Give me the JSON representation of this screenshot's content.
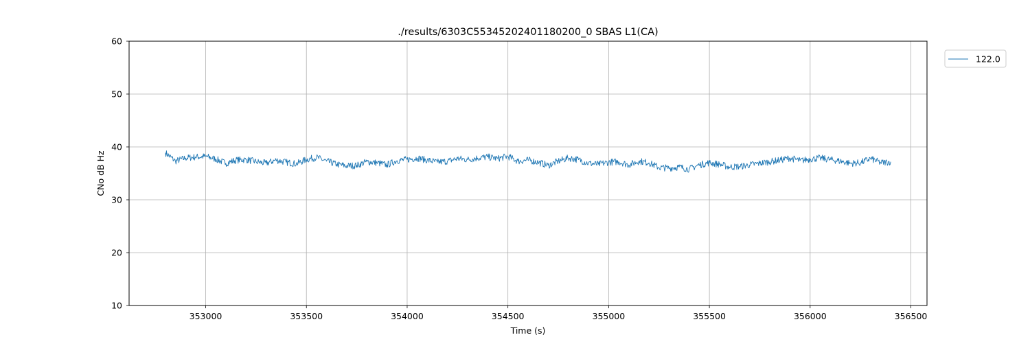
{
  "chart_data": {
    "type": "line",
    "title": "./results/6303C55345202401180200_0 SBAS L1(CA)",
    "xlabel": "Time (s)",
    "ylabel": "CNo dB Hz",
    "xlim": [
      352620,
      356580
    ],
    "ylim": [
      10,
      60
    ],
    "x_ticks": [
      353000,
      353500,
      354000,
      354500,
      355000,
      355500,
      356000,
      356500
    ],
    "y_ticks": [
      10,
      20,
      30,
      40,
      50,
      60
    ],
    "grid": true,
    "legend_position": "outside-right-top",
    "colors": {
      "series": "#1f77b4",
      "grid": "#b0b0b0"
    },
    "series": [
      {
        "name": "122.0",
        "x": [
          352800,
          352850,
          352900,
          352950,
          353000,
          353050,
          353100,
          353150,
          353200,
          353250,
          353300,
          353350,
          353400,
          353450,
          353500,
          353550,
          353600,
          353650,
          353700,
          353750,
          353800,
          353850,
          353900,
          353950,
          354000,
          354050,
          354100,
          354150,
          354200,
          354250,
          354300,
          354350,
          354400,
          354450,
          354500,
          354550,
          354600,
          354650,
          354700,
          354750,
          354800,
          354850,
          354900,
          354950,
          355000,
          355050,
          355100,
          355150,
          355200,
          355250,
          355300,
          355350,
          355400,
          355450,
          355500,
          355550,
          355600,
          355650,
          355700,
          355750,
          355800,
          355850,
          355900,
          355950,
          356000,
          356050,
          356100,
          356150,
          356200,
          356250,
          356300,
          356350,
          356400
        ],
        "y": [
          38.9,
          37.3,
          37.9,
          38.1,
          38.2,
          37.7,
          36.9,
          37.5,
          37.6,
          37.2,
          36.9,
          37.5,
          37.1,
          36.8,
          37.6,
          38.0,
          37.3,
          36.7,
          36.4,
          36.5,
          37.2,
          37.0,
          36.6,
          37.4,
          37.6,
          37.9,
          37.5,
          37.1,
          37.3,
          37.8,
          37.6,
          37.9,
          38.1,
          37.8,
          38.2,
          37.3,
          37.5,
          37.1,
          36.5,
          37.3,
          37.9,
          37.6,
          36.9,
          36.7,
          37.1,
          37.2,
          36.6,
          37.3,
          37.0,
          36.1,
          36.0,
          36.2,
          35.8,
          36.6,
          37.0,
          36.7,
          36.2,
          36.3,
          36.6,
          36.9,
          37.2,
          37.5,
          37.9,
          37.4,
          37.7,
          37.9,
          37.6,
          37.3,
          36.9,
          37.0,
          37.8,
          37.0,
          37.2
        ]
      }
    ]
  }
}
